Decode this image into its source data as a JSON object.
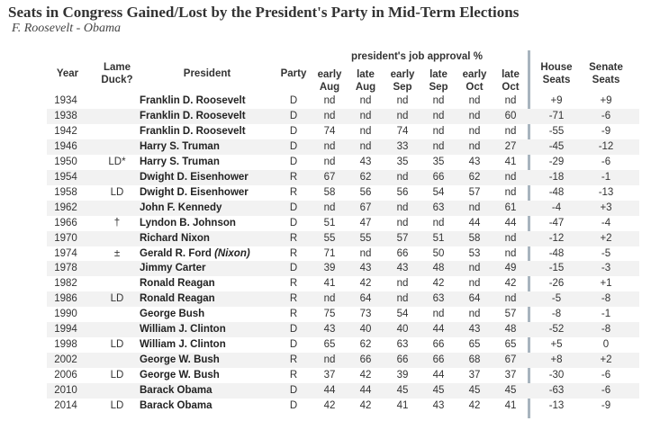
{
  "title": "Seats in Congress Gained/Lost by the President's Party in Mid-Term Elections",
  "subtitle": "F. Roosevelt - Obama",
  "headers": {
    "year": "Year",
    "lame_duck_1": "Lame",
    "lame_duck_2": "Duck?",
    "president": "President",
    "party": "Party",
    "approval_group": "president's job approval %",
    "early_aug_1": "early",
    "early_aug_2": "Aug",
    "late_aug_1": "late",
    "late_aug_2": "Aug",
    "early_sep_1": "early",
    "early_sep_2": "Sep",
    "late_sep_1": "late",
    "late_sep_2": "Sep",
    "early_oct_1": "early",
    "early_oct_2": "Oct",
    "late_oct_1": "late",
    "late_oct_2": "Oct",
    "house_1": "House",
    "house_2": "Seats",
    "senate_1": "Senate",
    "senate_2": "Seats"
  },
  "rows": [
    {
      "year": "1934",
      "ld": "",
      "president": "Franklin D. Roosevelt",
      "note": "",
      "party": "D",
      "ea": "nd",
      "la": "nd",
      "es": "nd",
      "ls": "nd",
      "eo": "nd",
      "lo": "nd",
      "house": "+9",
      "senate": "+9"
    },
    {
      "year": "1938",
      "ld": "",
      "president": "Franklin D. Roosevelt",
      "note": "",
      "party": "D",
      "ea": "nd",
      "la": "nd",
      "es": "nd",
      "ls": "nd",
      "eo": "nd",
      "lo": "60",
      "house": "-71",
      "senate": "-6"
    },
    {
      "year": "1942",
      "ld": "",
      "president": "Franklin D. Roosevelt",
      "note": "",
      "party": "D",
      "ea": "74",
      "la": "nd",
      "es": "74",
      "ls": "nd",
      "eo": "nd",
      "lo": "nd",
      "house": "-55",
      "senate": "-9"
    },
    {
      "year": "1946",
      "ld": "",
      "president": "Harry S. Truman",
      "note": "",
      "party": "D",
      "ea": "nd",
      "la": "nd",
      "es": "33",
      "ls": "nd",
      "eo": "nd",
      "lo": "27",
      "house": "-45",
      "senate": "-12"
    },
    {
      "year": "1950",
      "ld": "LD*",
      "president": "Harry S. Truman",
      "note": "",
      "party": "D",
      "ea": "nd",
      "la": "43",
      "es": "35",
      "ls": "35",
      "eo": "43",
      "lo": "41",
      "house": "-29",
      "senate": "-6"
    },
    {
      "year": "1954",
      "ld": "",
      "president": "Dwight D. Eisenhower",
      "note": "",
      "party": "R",
      "ea": "67",
      "la": "62",
      "es": "nd",
      "ls": "66",
      "eo": "62",
      "lo": "nd",
      "house": "-18",
      "senate": "-1"
    },
    {
      "year": "1958",
      "ld": "LD",
      "president": "Dwight D. Eisenhower",
      "note": "",
      "party": "R",
      "ea": "58",
      "la": "56",
      "es": "56",
      "ls": "54",
      "eo": "57",
      "lo": "nd",
      "house": "-48",
      "senate": "-13"
    },
    {
      "year": "1962",
      "ld": "",
      "president": "John F. Kennedy",
      "note": "",
      "party": "D",
      "ea": "nd",
      "la": "67",
      "es": "nd",
      "ls": "63",
      "eo": "nd",
      "lo": "61",
      "house": "-4",
      "senate": "+3"
    },
    {
      "year": "1966",
      "ld": "†",
      "president": "Lyndon B. Johnson",
      "note": "",
      "party": "D",
      "ea": "51",
      "la": "47",
      "es": "nd",
      "ls": "nd",
      "eo": "44",
      "lo": "44",
      "house": "-47",
      "senate": "-4"
    },
    {
      "year": "1970",
      "ld": "",
      "president": "Richard Nixon",
      "note": "",
      "party": "R",
      "ea": "55",
      "la": "55",
      "es": "57",
      "ls": "51",
      "eo": "58",
      "lo": "nd",
      "house": "-12",
      "senate": "+2"
    },
    {
      "year": "1974",
      "ld": "±",
      "president": "Gerald R. Ford ",
      "note": "(Nixon)",
      "party": "R",
      "ea": "71",
      "la": "nd",
      "es": "66",
      "ls": "50",
      "eo": "53",
      "lo": "nd",
      "house": "-48",
      "senate": "-5"
    },
    {
      "year": "1978",
      "ld": "",
      "president": "Jimmy Carter",
      "note": "",
      "party": "D",
      "ea": "39",
      "la": "43",
      "es": "43",
      "ls": "48",
      "eo": "nd",
      "lo": "49",
      "house": "-15",
      "senate": "-3"
    },
    {
      "year": "1982",
      "ld": "",
      "president": "Ronald Reagan",
      "note": "",
      "party": "R",
      "ea": "41",
      "la": "42",
      "es": "nd",
      "ls": "42",
      "eo": "nd",
      "lo": "42",
      "house": "-26",
      "senate": "+1"
    },
    {
      "year": "1986",
      "ld": "LD",
      "president": "Ronald Reagan",
      "note": "",
      "party": "R",
      "ea": "nd",
      "la": "64",
      "es": "nd",
      "ls": "63",
      "eo": "64",
      "lo": "nd",
      "house": "-5",
      "senate": "-8"
    },
    {
      "year": "1990",
      "ld": "",
      "president": "George Bush",
      "note": "",
      "party": "R",
      "ea": "75",
      "la": "73",
      "es": "54",
      "ls": "nd",
      "eo": "nd",
      "lo": "57",
      "house": "-8",
      "senate": "-1"
    },
    {
      "year": "1994",
      "ld": "",
      "president": "William J. Clinton",
      "note": "",
      "party": "D",
      "ea": "43",
      "la": "40",
      "es": "40",
      "ls": "44",
      "eo": "43",
      "lo": "48",
      "house": "-52",
      "senate": "-8"
    },
    {
      "year": "1998",
      "ld": "LD",
      "president": "William J. Clinton",
      "note": "",
      "party": "D",
      "ea": "65",
      "la": "62",
      "es": "63",
      "ls": "66",
      "eo": "65",
      "lo": "65",
      "house": "+5",
      "senate": "0"
    },
    {
      "year": "2002",
      "ld": "",
      "president": "George W. Bush",
      "note": "",
      "party": "R",
      "ea": "nd",
      "la": "66",
      "es": "66",
      "ls": "66",
      "eo": "68",
      "lo": "67",
      "house": "+8",
      "senate": "+2"
    },
    {
      "year": "2006",
      "ld": "LD",
      "president": "George W. Bush",
      "note": "",
      "party": "R",
      "ea": "37",
      "la": "42",
      "es": "39",
      "ls": "44",
      "eo": "37",
      "lo": "37",
      "house": "-30",
      "senate": "-6"
    },
    {
      "year": "2010",
      "ld": "",
      "president": "Barack Obama",
      "note": "",
      "party": "D",
      "ea": "44",
      "la": "44",
      "es": "45",
      "ls": "45",
      "eo": "45",
      "lo": "45",
      "house": "-63",
      "senate": "-6"
    },
    {
      "year": "2014",
      "ld": "LD",
      "president": "Barack Obama",
      "note": "",
      "party": "D",
      "ea": "42",
      "la": "42",
      "es": "41",
      "ls": "43",
      "eo": "42",
      "lo": "41",
      "house": "-13",
      "senate": "-9"
    }
  ]
}
